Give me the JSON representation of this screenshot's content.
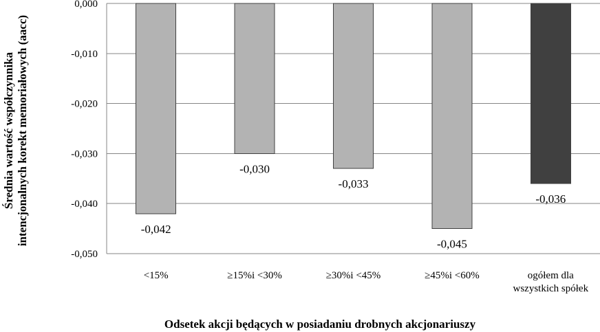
{
  "chart_data": {
    "type": "bar",
    "categories": [
      "<15%",
      "≥15%i <30%",
      "≥30%i <45%",
      "≥45%i <60%",
      "ogółem dla wszystkich spółek"
    ],
    "category_label_lines": [
      [
        "<15%"
      ],
      [
        "≥15%i <30%"
      ],
      [
        "≥30%i <45%"
      ],
      [
        "≥45%i <60%"
      ],
      [
        "ogółem dla",
        "wszystkich spółek"
      ]
    ],
    "values": [
      -0.042,
      -0.03,
      -0.033,
      -0.045,
      -0.036
    ],
    "value_labels": [
      "-0,042",
      "-0,030",
      "-0,033",
      "-0,045",
      "-0,036"
    ],
    "bar_colors": [
      "#b3b3b3",
      "#b3b3b3",
      "#b3b3b3",
      "#b3b3b3",
      "#404040"
    ],
    "ylim": [
      -0.05,
      0.0
    ],
    "yticks": [
      0.0,
      -0.01,
      -0.02,
      -0.03,
      -0.04,
      -0.05
    ],
    "ytick_labels": [
      "0,000",
      "-0,010",
      "-0,020",
      "-0,030",
      "-0,040",
      "-0,050"
    ],
    "ylabel_lines": [
      "Średnia wartość współczynnika",
      "intencjonalnych korekt memoriałowych (aacc)"
    ],
    "xlabel": "Odsetek akcji będących w posiadaniu drobnych akcjonariuszy",
    "title": "",
    "grid": true,
    "legend": "none",
    "colors": {
      "grid": "#868686",
      "bar_outline": "#404040",
      "text": "#000000"
    }
  }
}
